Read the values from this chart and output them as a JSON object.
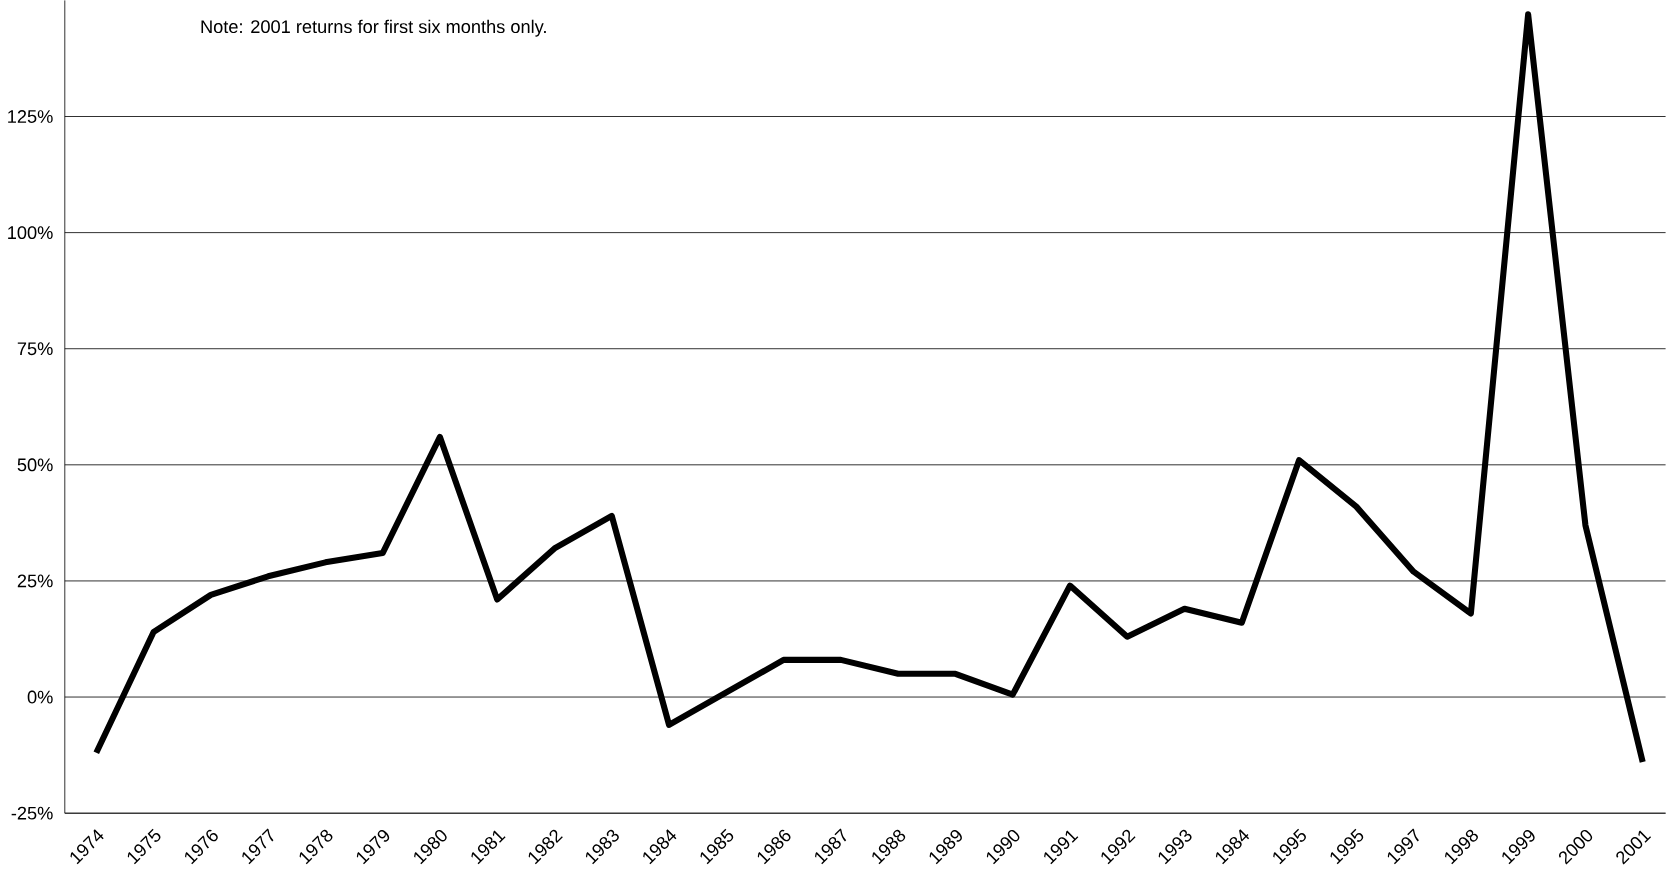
{
  "chart_data": {
    "type": "line",
    "categories": [
      "1974",
      "1975",
      "1976",
      "1977",
      "1978",
      "1979",
      "1980",
      "1981",
      "1982",
      "1983",
      "1984",
      "1985",
      "1986",
      "1987",
      "1988",
      "1989",
      "1990",
      "1991",
      "1992",
      "1993",
      "1984",
      "1995",
      "1995",
      "1997",
      "1998",
      "1999",
      "2000",
      "2001"
    ],
    "series": [
      {
        "color": "#000000",
        "values": [
          -12,
          14,
          22,
          26,
          29,
          31,
          56,
          21,
          32,
          39,
          -6,
          1,
          8,
          8,
          5,
          5,
          0.5,
          24,
          13,
          19,
          16,
          51,
          41,
          27,
          18,
          147,
          37,
          -14
        ]
      }
    ],
    "ylim": [
      -25,
      150
    ],
    "yticks": [
      {
        "value": -25,
        "label": "-25%"
      },
      {
        "value": 0,
        "label": "0%"
      },
      {
        "value": 25,
        "label": "25%"
      },
      {
        "value": 50,
        "label": "50%"
      },
      {
        "value": 75,
        "label": "75%"
      },
      {
        "value": 100,
        "label": "100%"
      },
      {
        "value": 125,
        "label": "125%"
      }
    ],
    "grid": "y",
    "marker": "none",
    "line_style": "solid",
    "annotations": [
      "Note: 2001 returns for first six months only."
    ]
  }
}
